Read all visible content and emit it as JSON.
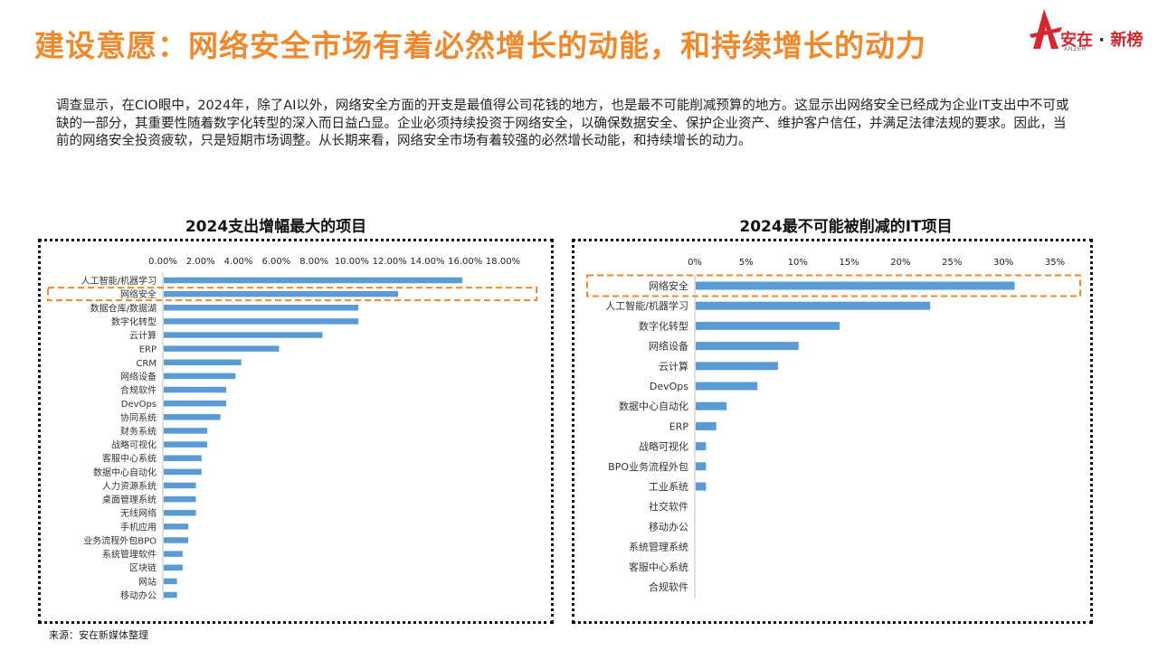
{
  "title": "建设意愿：网络安全市场有着必然增长的动能，和持续增长的动力",
  "logo": {
    "name": "安在",
    "sep": "·",
    "suffix": "新榜",
    "sub": "ANZER"
  },
  "intro": "调查显示，在CIO眼中，2024年，除了AI以外，网络安全方面的开支是最值得公司花钱的地方，也是最不可能削减预算的地方。这显示出网络安全已经成为企业IT支出中不可或缺的一部分，其重要性随着数字化转型的深入而日益凸显。企业必须持续投资于网络安全，以确保数据安全、保护企业资产、维护客户信任，并满足法律法规的要求。因此，当前的网络安全投资疲软，只是短期市场调整。从长期来看，网络安全市场有着较强的必然增长动能，和持续增长的动力。",
  "source": "来源：安在新媒体整理",
  "colors": {
    "accent": "#f0892d",
    "bar": "#5b9bd5",
    "logo": "#d7262e"
  },
  "chart_data": [
    {
      "type": "bar",
      "orientation": "horizontal",
      "title": "2024支出增幅最大的项目",
      "xlim": [
        0,
        0.18
      ],
      "ticks": [
        "0.00%",
        "2.00%",
        "4.00%",
        "6.00%",
        "8.00%",
        "10.00%",
        "12.00%",
        "14.00%",
        "16.00%",
        "18.00%"
      ],
      "highlight": "网络安全",
      "categories": [
        "人工智能/机器学习",
        "网络安全",
        "数据仓库/数据湖",
        "数字化转型",
        "云计算",
        "ERP",
        "CRM",
        "网络设备",
        "合规软件",
        "DevOps",
        "协同系统",
        "财务系统",
        "战略可视化",
        "客服中心系统",
        "数据中心自动化",
        "人力资源系统",
        "桌面管理系统",
        "无线网络",
        "手机应用",
        "业务流程外包BPO",
        "系统管理软件",
        "区块链",
        "网站",
        "移动办公"
      ],
      "values": [
        0.158,
        0.124,
        0.103,
        0.103,
        0.084,
        0.061,
        0.041,
        0.038,
        0.033,
        0.033,
        0.03,
        0.023,
        0.023,
        0.02,
        0.02,
        0.017,
        0.017,
        0.017,
        0.013,
        0.013,
        0.01,
        0.01,
        0.007,
        0.007
      ]
    },
    {
      "type": "bar",
      "orientation": "horizontal",
      "title": "2024最不可能被削减的IT项目",
      "xlim": [
        0,
        0.35
      ],
      "ticks": [
        "0%",
        "5%",
        "10%",
        "15%",
        "20%",
        "25%",
        "30%",
        "35%"
      ],
      "highlight": "网络安全",
      "categories": [
        "网络安全",
        "人工智能/机器学习",
        "数字化转型",
        "网络设备",
        "云计算",
        "DevOps",
        "数据中心自动化",
        "ERP",
        "战略可视化",
        "BPO业务流程外包",
        "工业系统",
        "社交软件",
        "移动办公",
        "系统管理系统",
        "客服中心系统",
        "合规软件"
      ],
      "values": [
        0.31,
        0.228,
        0.14,
        0.1,
        0.08,
        0.06,
        0.03,
        0.02,
        0.01,
        0.01,
        0.01,
        0,
        0,
        0,
        0,
        0
      ]
    }
  ]
}
